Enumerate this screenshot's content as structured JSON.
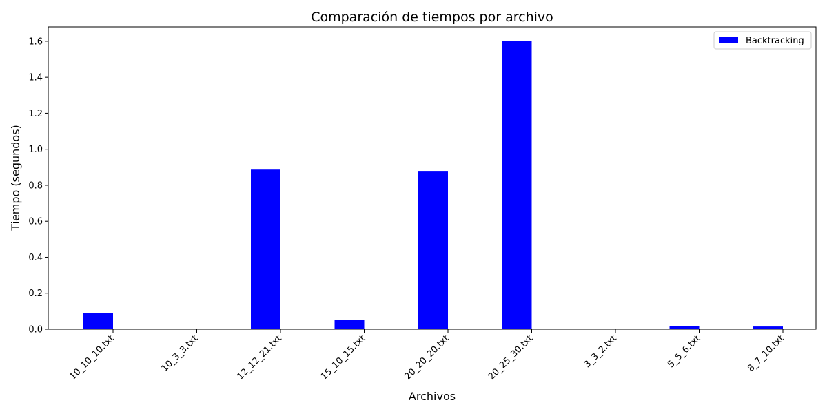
{
  "chart_data": {
    "type": "bar",
    "title": "Comparación de tiempos por archivo",
    "xlabel": "Archivos",
    "ylabel": "Tiempo (segundos)",
    "categories": [
      "10_10_10.txt",
      "10_3_3.txt",
      "12_12_21.txt",
      "15_10_15.txt",
      "20_20_20.txt",
      "20_25_30.txt",
      "3_3_2.txt",
      "5_5_6.txt",
      "8_7_10.txt"
    ],
    "series": [
      {
        "name": "Backtracking",
        "values": [
          0.088,
          0.0005,
          0.887,
          0.053,
          0.876,
          1.6,
          0.0003,
          0.018,
          0.015
        ],
        "color": "#0000ff"
      }
    ],
    "yticks": [
      "0.0",
      "0.2",
      "0.4",
      "0.6",
      "0.8",
      "1.0",
      "1.2",
      "1.4",
      "1.6"
    ],
    "ylim": [
      0,
      1.68
    ],
    "grid": false,
    "legend_position": "top-right"
  }
}
